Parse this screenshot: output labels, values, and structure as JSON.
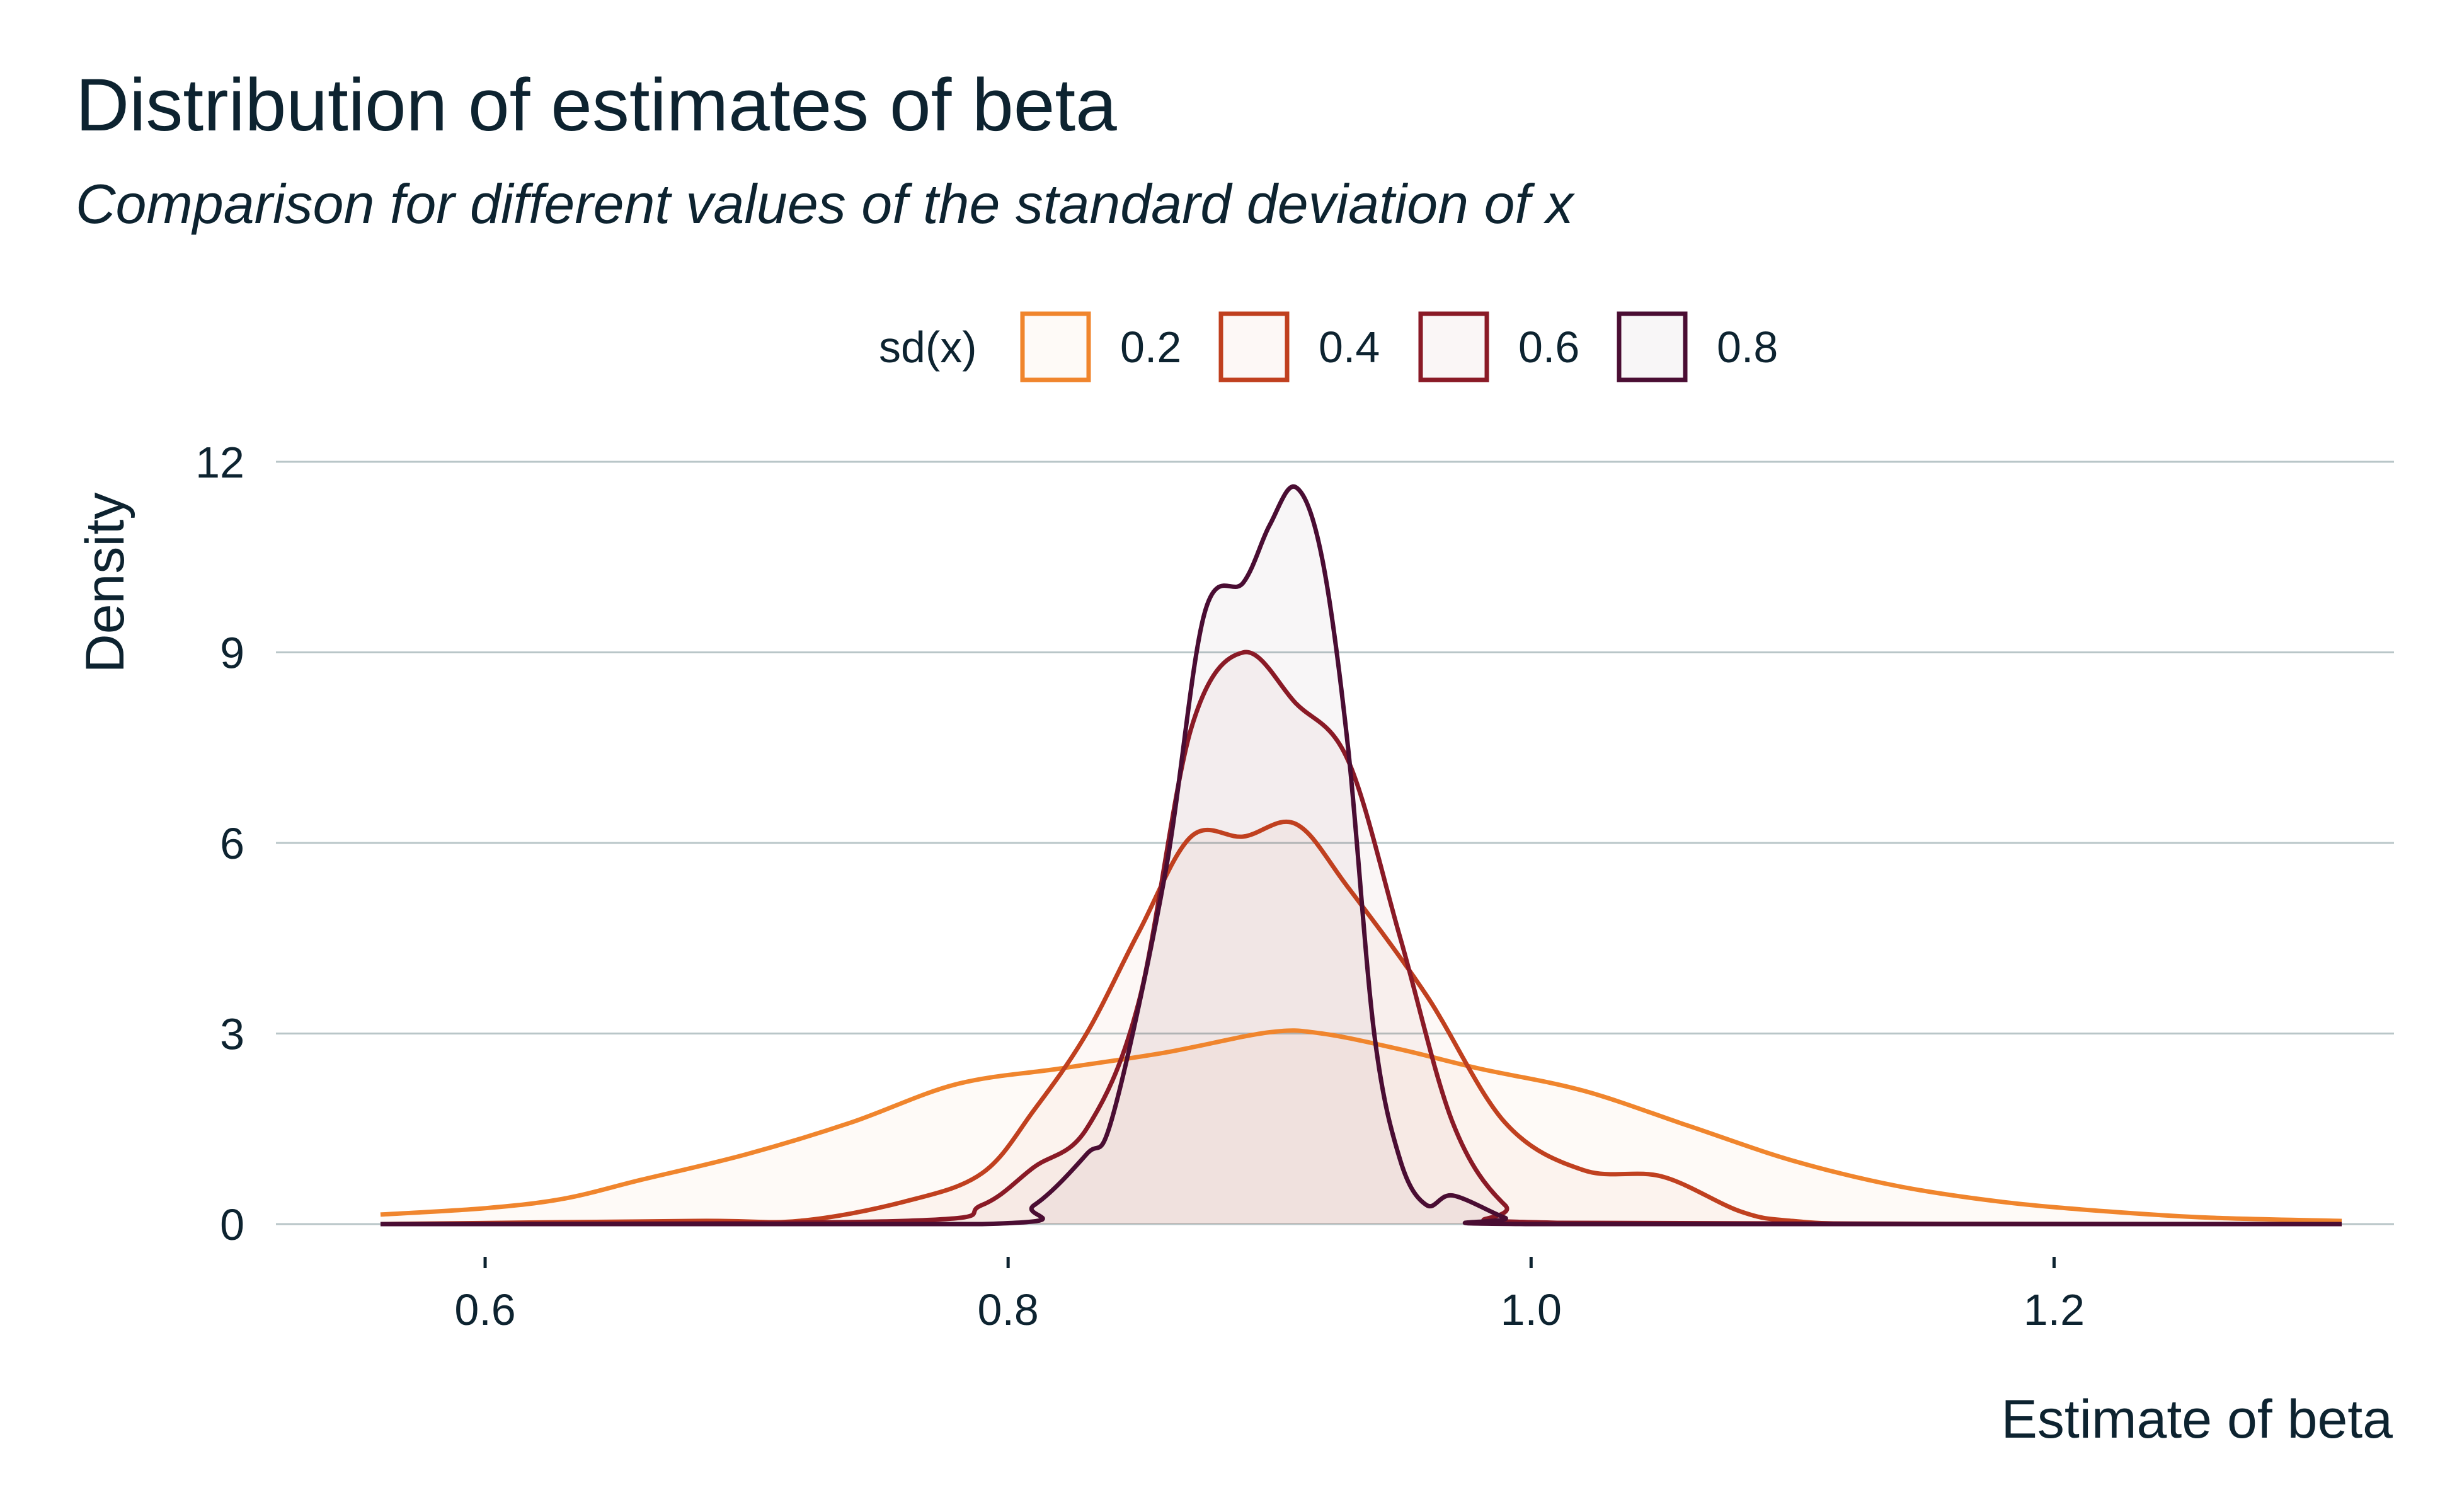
{
  "chart_data": {
    "type": "area",
    "title": "Distribution of estimates of beta",
    "subtitle": "Comparison for different values of the standard deviation of x",
    "xlabel": "Estimate of beta",
    "ylabel": "Density",
    "xlim": [
      0.52,
      1.33
    ],
    "ylim": [
      0,
      12
    ],
    "xticks": [
      0.6,
      0.8,
      1.0,
      1.2
    ],
    "xtick_labels": [
      "0.6",
      "0.8",
      "1.0",
      "1.2"
    ],
    "yticks": [
      0,
      3,
      6,
      9,
      12
    ],
    "ytick_labels": [
      "0",
      "3",
      "6",
      "9",
      "12"
    ],
    "grid": "horizontal",
    "legend_position": "top",
    "legend_title": "sd(x)",
    "series": [
      {
        "name": "0.2",
        "color": "#f0852d",
        "x": [
          0.56,
          0.6,
          0.63,
          0.66,
          0.7,
          0.74,
          0.78,
          0.82,
          0.86,
          0.9,
          0.92,
          0.95,
          0.98,
          1.02,
          1.06,
          1.1,
          1.14,
          1.18,
          1.22,
          1.26,
          1.31
        ],
        "y": [
          0.15,
          0.25,
          0.4,
          0.7,
          1.1,
          1.6,
          2.2,
          2.45,
          2.7,
          3.02,
          3.0,
          2.75,
          2.45,
          2.1,
          1.55,
          1.0,
          0.6,
          0.35,
          0.2,
          0.1,
          0.05
        ]
      },
      {
        "name": "0.4",
        "color": "#c0401f",
        "x": [
          0.56,
          0.68,
          0.72,
          0.76,
          0.79,
          0.81,
          0.83,
          0.85,
          0.87,
          0.89,
          0.91,
          0.93,
          0.96,
          0.99,
          1.02,
          1.05,
          1.08,
          1.1,
          1.14,
          1.31
        ],
        "y": [
          0.0,
          0.05,
          0.05,
          0.35,
          0.8,
          1.8,
          3.0,
          4.6,
          6.1,
          6.1,
          6.3,
          5.3,
          3.6,
          1.6,
          0.85,
          0.75,
          0.2,
          0.05,
          0.0,
          0.0
        ]
      },
      {
        "name": "0.6",
        "color": "#8a1a26",
        "x": [
          0.56,
          0.76,
          0.79,
          0.81,
          0.83,
          0.85,
          0.87,
          0.89,
          0.91,
          0.93,
          0.95,
          0.97,
          0.99,
          1.01,
          1.31
        ],
        "y": [
          0.0,
          0.05,
          0.3,
          0.9,
          1.5,
          3.5,
          7.8,
          9.0,
          8.2,
          7.3,
          4.5,
          1.6,
          0.3,
          0.02,
          0.0
        ]
      },
      {
        "name": "0.8",
        "color": "#4a0d33",
        "x": [
          0.56,
          0.79,
          0.81,
          0.83,
          0.84,
          0.86,
          0.875,
          0.89,
          0.9,
          0.91,
          0.92,
          0.93,
          0.94,
          0.95,
          0.96,
          0.97,
          0.99,
          1.0,
          1.31
        ],
        "y": [
          0.0,
          0.0,
          0.3,
          1.1,
          1.7,
          5.5,
          9.6,
          10.1,
          11.0,
          11.6,
          10.5,
          7.5,
          3.0,
          1.0,
          0.3,
          0.45,
          0.1,
          0.0,
          0.0
        ]
      }
    ]
  }
}
